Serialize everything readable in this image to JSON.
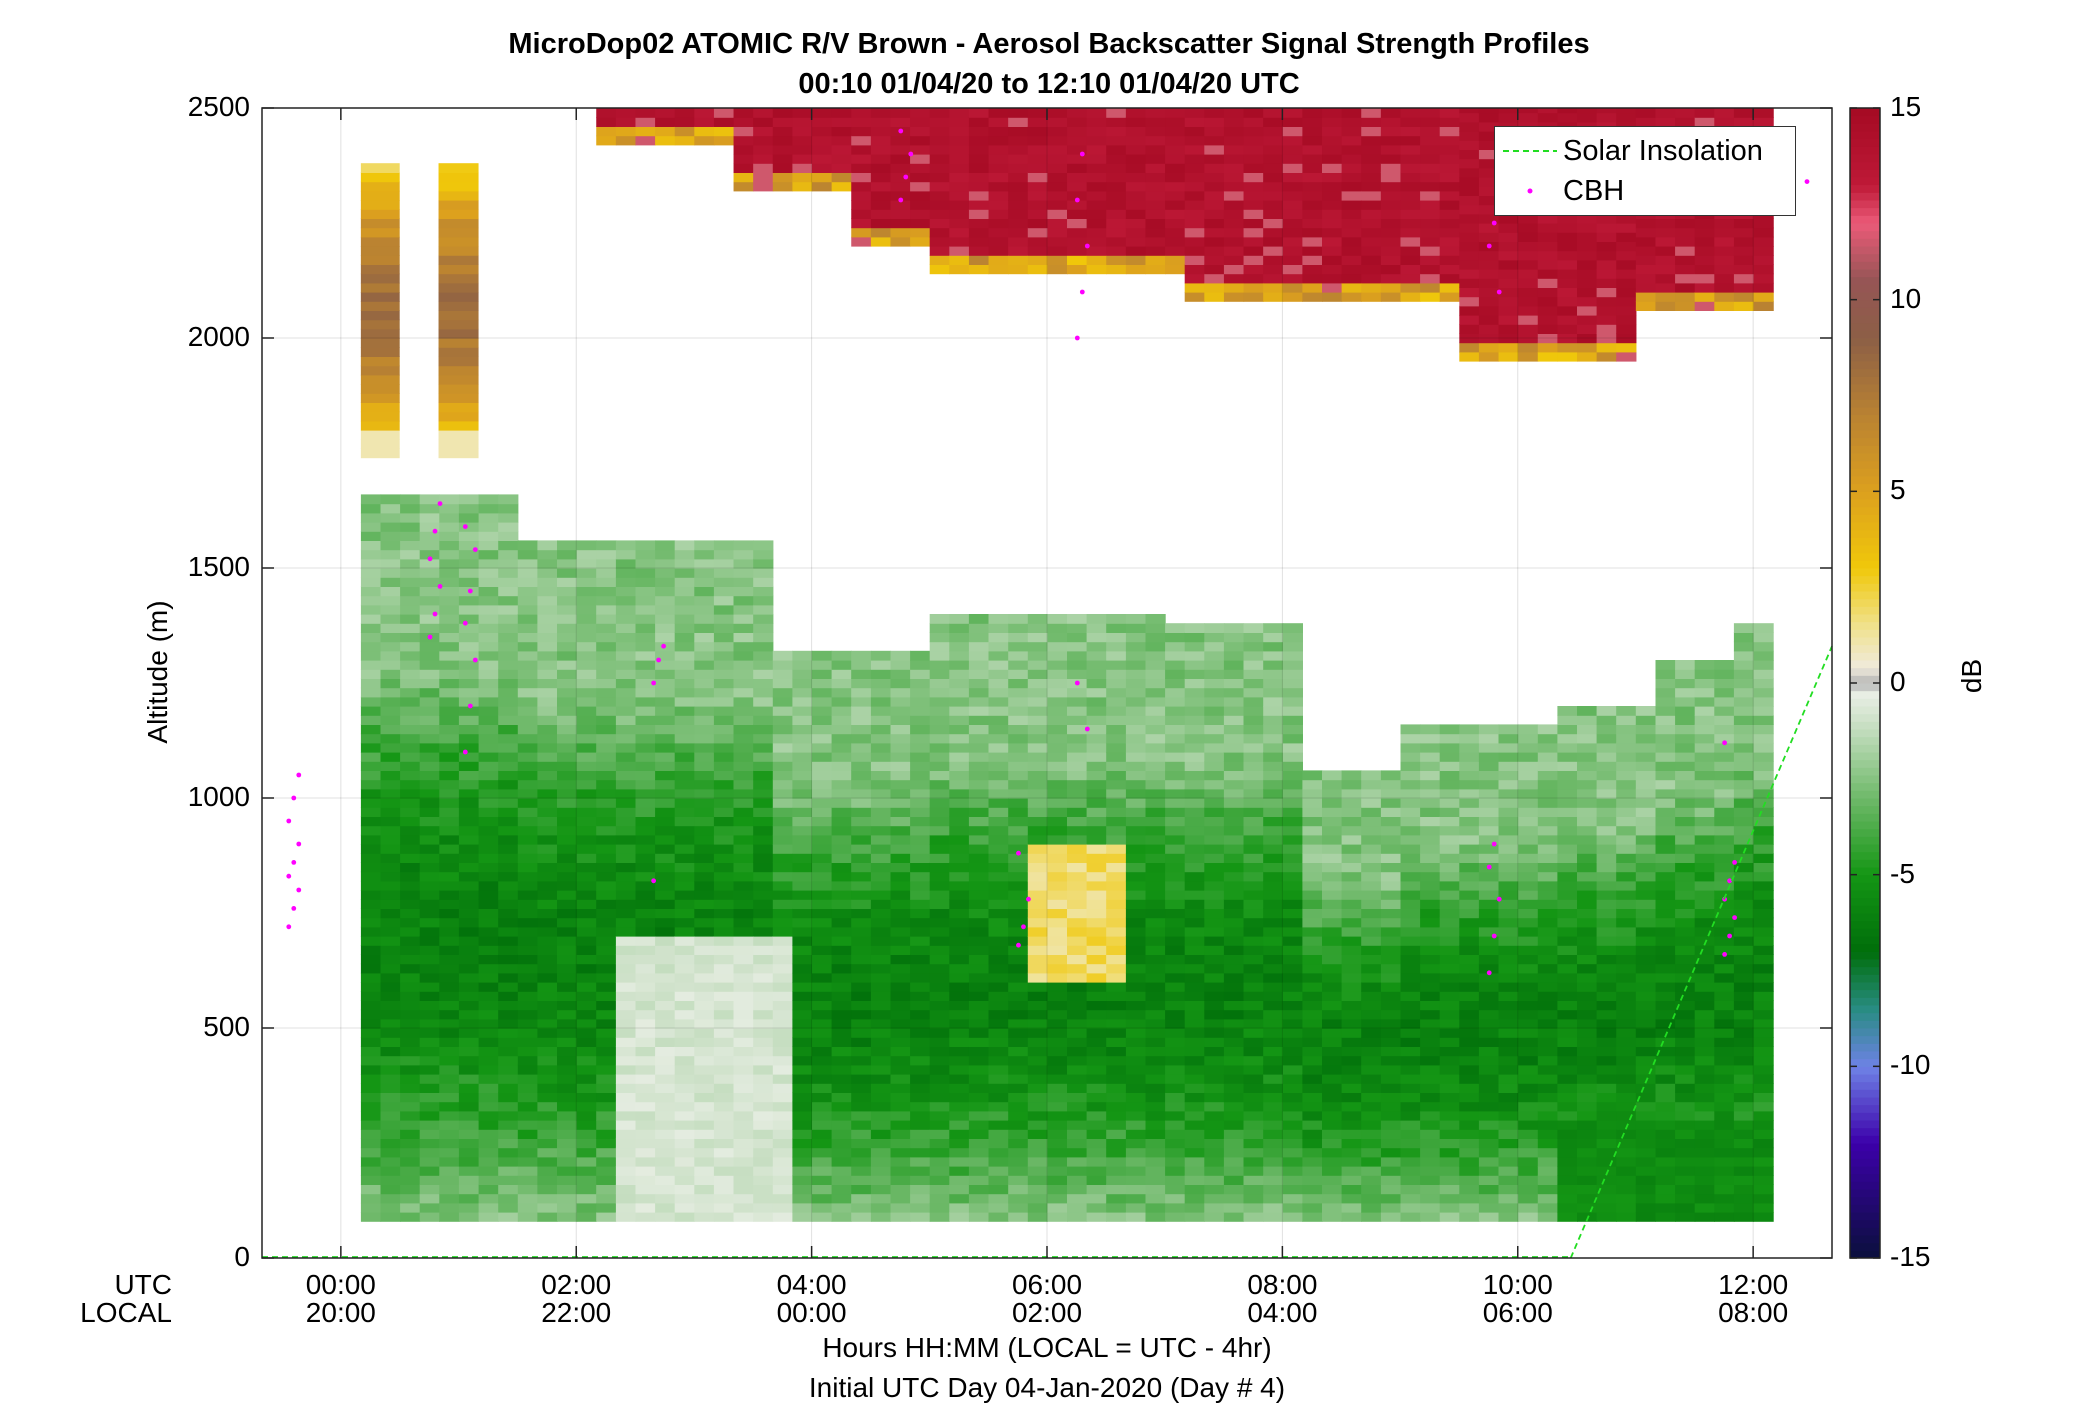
{
  "title": {
    "line1": "MicroDop02 ATOMIC R/V Brown - Aerosol Backscatter Signal Strength Profiles",
    "line2": "00:10 01/04/20 to 12:10 01/04/20  UTC"
  },
  "axes": {
    "ylabel": "Altitude (m)",
    "xrow1_label": "UTC",
    "xrow2_label": "LOCAL",
    "xlabel_line1": "Hours HH:MM  (LOCAL = UTC - 4hr)",
    "xlabel_line2": "Initial UTC Day 04-Jan-2020 (Day # 4)",
    "colorbar_label": "dB"
  },
  "legend": {
    "solar": "Solar Insolation",
    "cbh": "CBH"
  },
  "chart_data": {
    "type": "heatmap",
    "title": "MicroDop02 ATOMIC R/V Brown - Aerosol Backscatter Signal Strength Profiles",
    "subtitle": "00:10 01/04/20 to 12:10 01/04/20  UTC",
    "ylabel": "Altitude (m)",
    "xlabel": "Hours HH:MM  (LOCAL = UTC - 4hr)",
    "ylim": [
      0,
      2500
    ],
    "xlim_hours_utc": [
      -0.67,
      12.67
    ],
    "yticks": [
      0,
      500,
      1000,
      1500,
      2000,
      2500
    ],
    "xticks_utc": [
      "00:00",
      "02:00",
      "04:00",
      "06:00",
      "08:00",
      "10:00",
      "12:00"
    ],
    "xticks_local": [
      "20:00",
      "22:00",
      "00:00",
      "02:00",
      "04:00",
      "06:00",
      "08:00"
    ],
    "colorbar": {
      "label": "dB",
      "range": [
        -15,
        15
      ],
      "ticks": [
        15,
        10,
        5,
        0,
        -5,
        -10,
        -15
      ]
    },
    "grid": true,
    "legend_position": "top-right",
    "cbh_points": [
      {
        "hour_utc": -0.4,
        "altitude_m": [
          720,
          760,
          800,
          830,
          860,
          900,
          950,
          1000,
          1050
        ]
      },
      {
        "hour_utc": 0.8,
        "altitude_m": [
          1350,
          1400,
          1460,
          1520,
          1580,
          1640
        ]
      },
      {
        "hour_utc": 1.1,
        "altitude_m": [
          1100,
          1200,
          1300,
          1380,
          1450,
          1540,
          1590
        ]
      },
      {
        "hour_utc": 2.7,
        "altitude_m": [
          1250,
          1300,
          1330,
          820
        ]
      },
      {
        "hour_utc": 4.8,
        "altitude_m": [
          2300,
          2350,
          2400,
          2450
        ]
      },
      {
        "hour_utc": 5.8,
        "altitude_m": [
          680,
          720,
          780,
          880
        ]
      },
      {
        "hour_utc": 6.3,
        "altitude_m": [
          2000,
          2100,
          2200,
          2300,
          2400,
          1150,
          1250
        ]
      },
      {
        "hour_utc": 9.8,
        "altitude_m": [
          620,
          700,
          780,
          850,
          900,
          2100,
          2200,
          2250
        ]
      },
      {
        "hour_utc": 11.8,
        "altitude_m": [
          660,
          700,
          740,
          780,
          820,
          860,
          1120
        ]
      },
      {
        "hour_utc": 12.5,
        "altitude_m": [
          2340
        ]
      }
    ],
    "solar_insolation_line": {
      "start_hour_utc": 10.45,
      "start_altitude_m": 0,
      "end_hour_utc": 12.67,
      "end_altitude_m": 1330
    },
    "regions_dB": [
      {
        "desc": "aerosol layer 0-1600 m",
        "hours_utc": [
          0.17,
          12.17
        ],
        "altitude_m": [
          80,
          1600
        ],
        "dB_range": [
          -7,
          0
        ]
      },
      {
        "desc": "upper cloud layer",
        "hours_utc": [
          2.17,
          12.17
        ],
        "altitude_m": [
          1950,
          2500
        ],
        "dB_range": [
          3,
          15
        ]
      },
      {
        "desc": "early column",
        "hours_utc": [
          0.17,
          1.5
        ],
        "altitude_m": [
          1700,
          2380
        ],
        "dB_range": [
          2,
          9
        ]
      }
    ]
  }
}
